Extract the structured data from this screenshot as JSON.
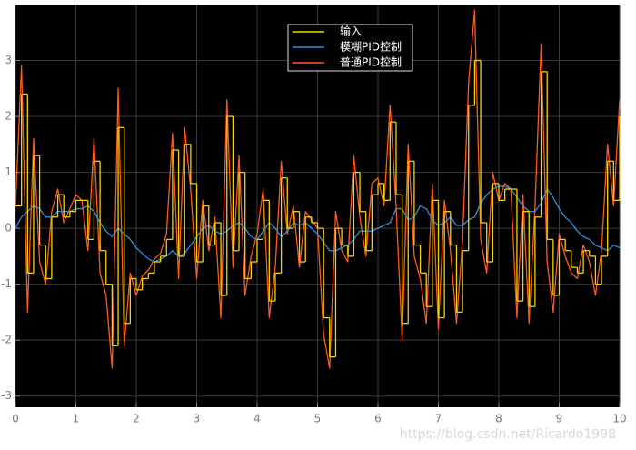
{
  "chart_data": {
    "type": "line",
    "x": [
      0,
      0.1,
      0.2,
      0.3,
      0.4,
      0.5,
      0.6,
      0.7,
      0.8,
      0.9,
      1,
      1.1,
      1.2,
      1.3,
      1.4,
      1.5,
      1.6,
      1.7,
      1.8,
      1.9,
      2,
      2.1,
      2.2,
      2.3,
      2.4,
      2.5,
      2.6,
      2.7,
      2.8,
      2.9,
      3,
      3.1,
      3.2,
      3.3,
      3.4,
      3.5,
      3.6,
      3.7,
      3.8,
      3.9,
      4,
      4.1,
      4.2,
      4.3,
      4.4,
      4.5,
      4.6,
      4.7,
      4.8,
      4.9,
      5,
      5.1,
      5.2,
      5.3,
      5.4,
      5.5,
      5.6,
      5.7,
      5.8,
      5.9,
      6,
      6.1,
      6.2,
      6.3,
      6.4,
      6.5,
      6.6,
      6.7,
      6.8,
      6.9,
      7,
      7.1,
      7.2,
      7.3,
      7.4,
      7.5,
      7.6,
      7.7,
      7.8,
      7.9,
      8,
      8.1,
      8.2,
      8.3,
      8.4,
      8.5,
      8.6,
      8.7,
      8.8,
      8.9,
      9,
      9.1,
      9.2,
      9.3,
      9.4,
      9.5,
      9.6,
      9.7,
      9.8,
      9.9,
      10
    ],
    "series": [
      {
        "name": "输入",
        "color": "#f2d400",
        "step": true,
        "values": [
          0.4,
          2.4,
          -0.8,
          1.3,
          -0.3,
          -0.9,
          0.2,
          0.6,
          0.2,
          0.3,
          0.5,
          0.5,
          -0.2,
          1.2,
          -0.4,
          -1.0,
          -2.1,
          1.8,
          -1.7,
          -0.9,
          -1.1,
          -0.9,
          -0.8,
          -0.6,
          -0.5,
          -0.2,
          1.4,
          -0.5,
          1.5,
          0.8,
          -0.6,
          0.4,
          -0.3,
          0.1,
          -1.2,
          2.0,
          -0.4,
          1.0,
          -0.9,
          -0.6,
          -0.2,
          0.5,
          -1.3,
          -0.8,
          0.9,
          0.0,
          0.3,
          -0.6,
          0.2,
          0.1,
          0.0,
          -1.6,
          -2.3,
          0.0,
          -0.3,
          -0.5,
          1.0,
          0.3,
          -0.4,
          0.6,
          0.8,
          0.5,
          1.9,
          0.6,
          -1.7,
          1.2,
          -0.3,
          -0.8,
          -1.4,
          0.5,
          -1.6,
          0.3,
          -0.3,
          -1.5,
          -0.4,
          2.2,
          3.0,
          0.1,
          -0.6,
          0.8,
          0.5,
          0.7,
          0.7,
          -1.3,
          0.3,
          -1.4,
          0.2,
          2.8,
          -0.2,
          -1.2,
          -0.2,
          -0.4,
          -0.7,
          -0.8,
          -0.4,
          -0.5,
          -1.0,
          -0.5,
          1.2,
          0.5,
          2.0
        ]
      },
      {
        "name": "模糊PID控制",
        "color": "#2e8fdc",
        "step": false,
        "values": [
          0.0,
          0.2,
          0.3,
          0.4,
          0.35,
          0.2,
          0.2,
          0.3,
          0.3,
          0.3,
          0.35,
          0.35,
          0.4,
          0.3,
          0.1,
          -0.05,
          -0.15,
          0.0,
          -0.1,
          -0.2,
          -0.35,
          -0.45,
          -0.55,
          -0.6,
          -0.55,
          -0.5,
          -0.4,
          -0.5,
          -0.45,
          -0.3,
          -0.15,
          0.0,
          0.05,
          -0.05,
          -0.1,
          -0.05,
          0.05,
          0.1,
          0.0,
          -0.15,
          -0.2,
          -0.05,
          0.1,
          0.0,
          -0.15,
          -0.05,
          0.1,
          0.05,
          0.1,
          0.0,
          -0.1,
          -0.25,
          -0.4,
          -0.4,
          -0.35,
          -0.3,
          -0.2,
          -0.05,
          -0.05,
          -0.05,
          0.0,
          0.05,
          0.1,
          0.35,
          0.35,
          0.15,
          0.2,
          0.4,
          0.35,
          0.15,
          0.05,
          0.1,
          0.2,
          0.05,
          0.05,
          0.15,
          0.2,
          0.45,
          0.6,
          0.7,
          0.75,
          0.75,
          0.7,
          0.55,
          0.4,
          0.3,
          0.3,
          0.45,
          0.7,
          0.55,
          0.35,
          0.2,
          0.1,
          -0.05,
          -0.15,
          -0.2,
          -0.3,
          -0.35,
          -0.4,
          -0.3,
          -0.35
        ]
      },
      {
        "name": "普通PID控制",
        "color": "#ff5a1e",
        "step": false,
        "values": [
          0.4,
          2.9,
          -1.5,
          1.6,
          -0.6,
          -1.0,
          0.3,
          0.7,
          0.1,
          0.35,
          0.6,
          0.5,
          -0.4,
          1.6,
          -0.8,
          -1.2,
          -2.5,
          2.5,
          -2.1,
          -0.8,
          -1.2,
          -0.85,
          -0.75,
          -0.55,
          -0.45,
          -0.1,
          1.7,
          -0.9,
          1.8,
          0.7,
          -0.9,
          0.5,
          -0.4,
          0.2,
          -1.6,
          2.3,
          -0.7,
          1.3,
          -1.2,
          -0.5,
          -0.1,
          0.7,
          -1.6,
          -0.7,
          1.2,
          -0.1,
          0.4,
          -0.7,
          0.3,
          0.15,
          0.0,
          -1.9,
          -2.5,
          0.3,
          -0.4,
          -0.6,
          1.3,
          0.2,
          -0.5,
          0.8,
          0.9,
          0.4,
          2.2,
          0.4,
          -2.0,
          1.5,
          -0.5,
          -0.9,
          -1.7,
          0.8,
          -1.8,
          0.5,
          -0.4,
          -1.7,
          -0.2,
          2.6,
          3.9,
          -0.2,
          -0.8,
          1.0,
          0.5,
          0.8,
          0.7,
          -1.6,
          0.6,
          -1.7,
          0.4,
          3.3,
          -0.6,
          -1.5,
          -0.1,
          -0.5,
          -0.8,
          -0.9,
          -0.3,
          -0.6,
          -1.2,
          -0.4,
          1.5,
          0.4,
          2.3
        ]
      }
    ],
    "xlim": [
      0,
      10
    ],
    "ylim": [
      -3.2,
      4
    ],
    "xticks": [
      0,
      1,
      2,
      3,
      4,
      5,
      6,
      7,
      8,
      9,
      10
    ],
    "yticks": [
      -3,
      -2,
      -1,
      0,
      1,
      2,
      3
    ],
    "grid": true,
    "legend": "top",
    "watermark": "https://blog.csdn.net/Ricardo1998"
  }
}
